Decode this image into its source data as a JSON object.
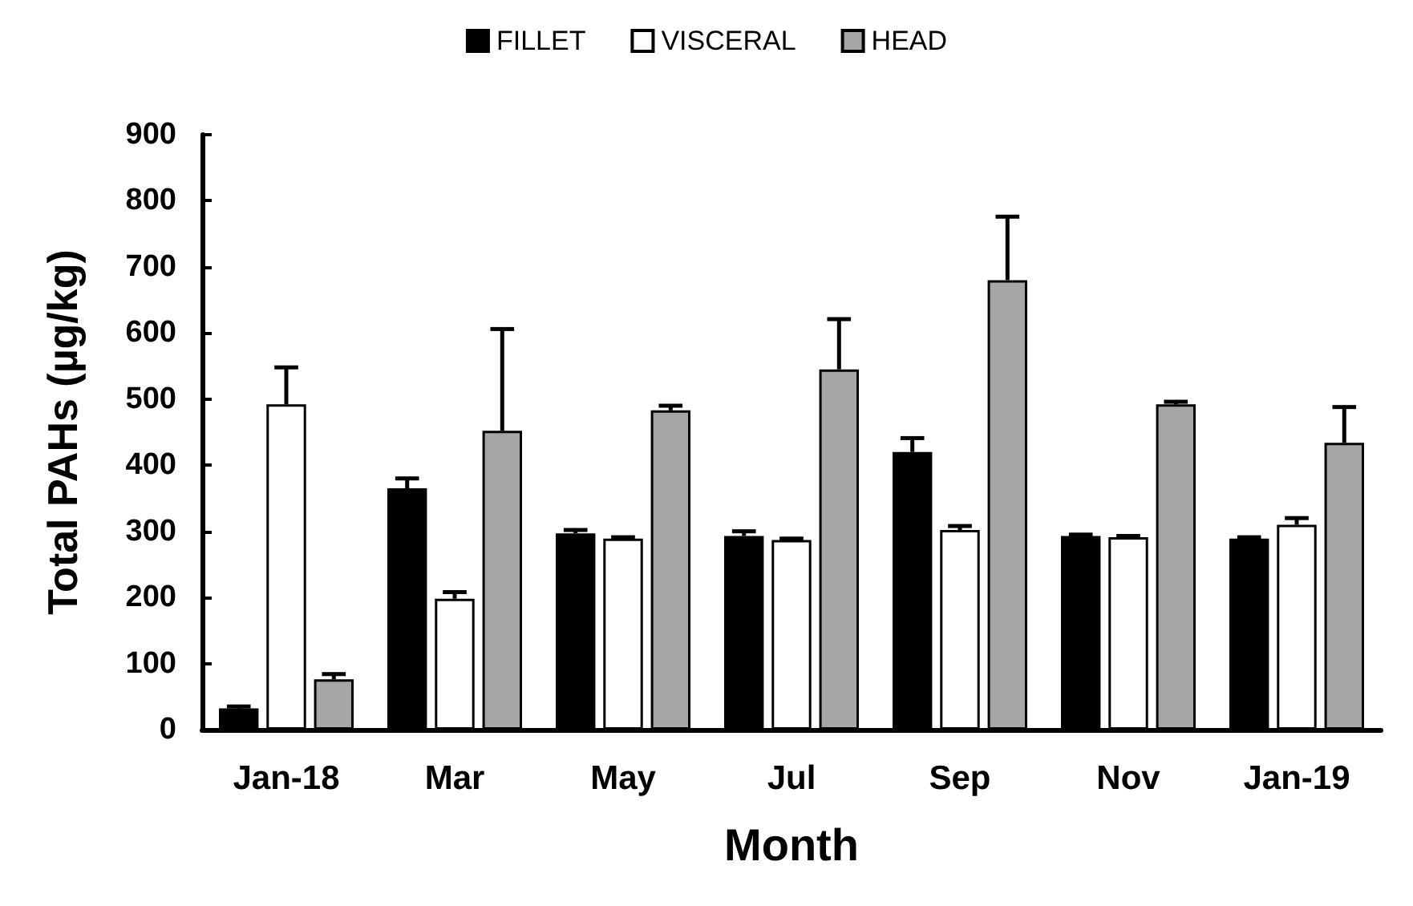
{
  "chart_data": {
    "type": "bar",
    "xlabel": "Month",
    "ylabel": "Total PAHs (µg/kg)",
    "categories": [
      "Jan-18",
      "Mar",
      "May",
      "Jul",
      "Sep",
      "Nov",
      "Jan-19"
    ],
    "series": [
      {
        "name": "FILLET",
        "color": "#000000",
        "values": [
          32,
          365,
          297,
          293,
          420,
          293,
          289
        ],
        "errors": [
          [
            32,
            35
          ],
          [
            365,
            380
          ],
          [
            297,
            302
          ],
          [
            293,
            300
          ],
          [
            420,
            441
          ],
          [
            293,
            295
          ],
          [
            289,
            291
          ]
        ]
      },
      {
        "name": "VISCERAL",
        "color": "#ffffff",
        "values": [
          492,
          198,
          289,
          287,
          302,
          291,
          310
        ],
        "errors": [
          [
            492,
            548
          ],
          [
            198,
            208
          ],
          [
            289,
            291
          ],
          [
            287,
            289
          ],
          [
            302,
            308
          ],
          [
            291,
            293
          ],
          [
            310,
            320
          ]
        ]
      },
      {
        "name": "HEAD",
        "color": "#a6a6a6",
        "values": [
          76,
          452,
          483,
          545,
          680,
          492,
          434
        ],
        "errors": [
          [
            76,
            84
          ],
          [
            452,
            606
          ],
          [
            483,
            490
          ],
          [
            545,
            621
          ],
          [
            680,
            776
          ],
          [
            492,
            496
          ],
          [
            434,
            488
          ]
        ]
      }
    ],
    "ylim": [
      0,
      900
    ],
    "yticks": [
      0,
      100,
      200,
      300,
      400,
      500,
      600,
      700,
      800,
      900
    ],
    "grid": false,
    "legend": "top"
  }
}
